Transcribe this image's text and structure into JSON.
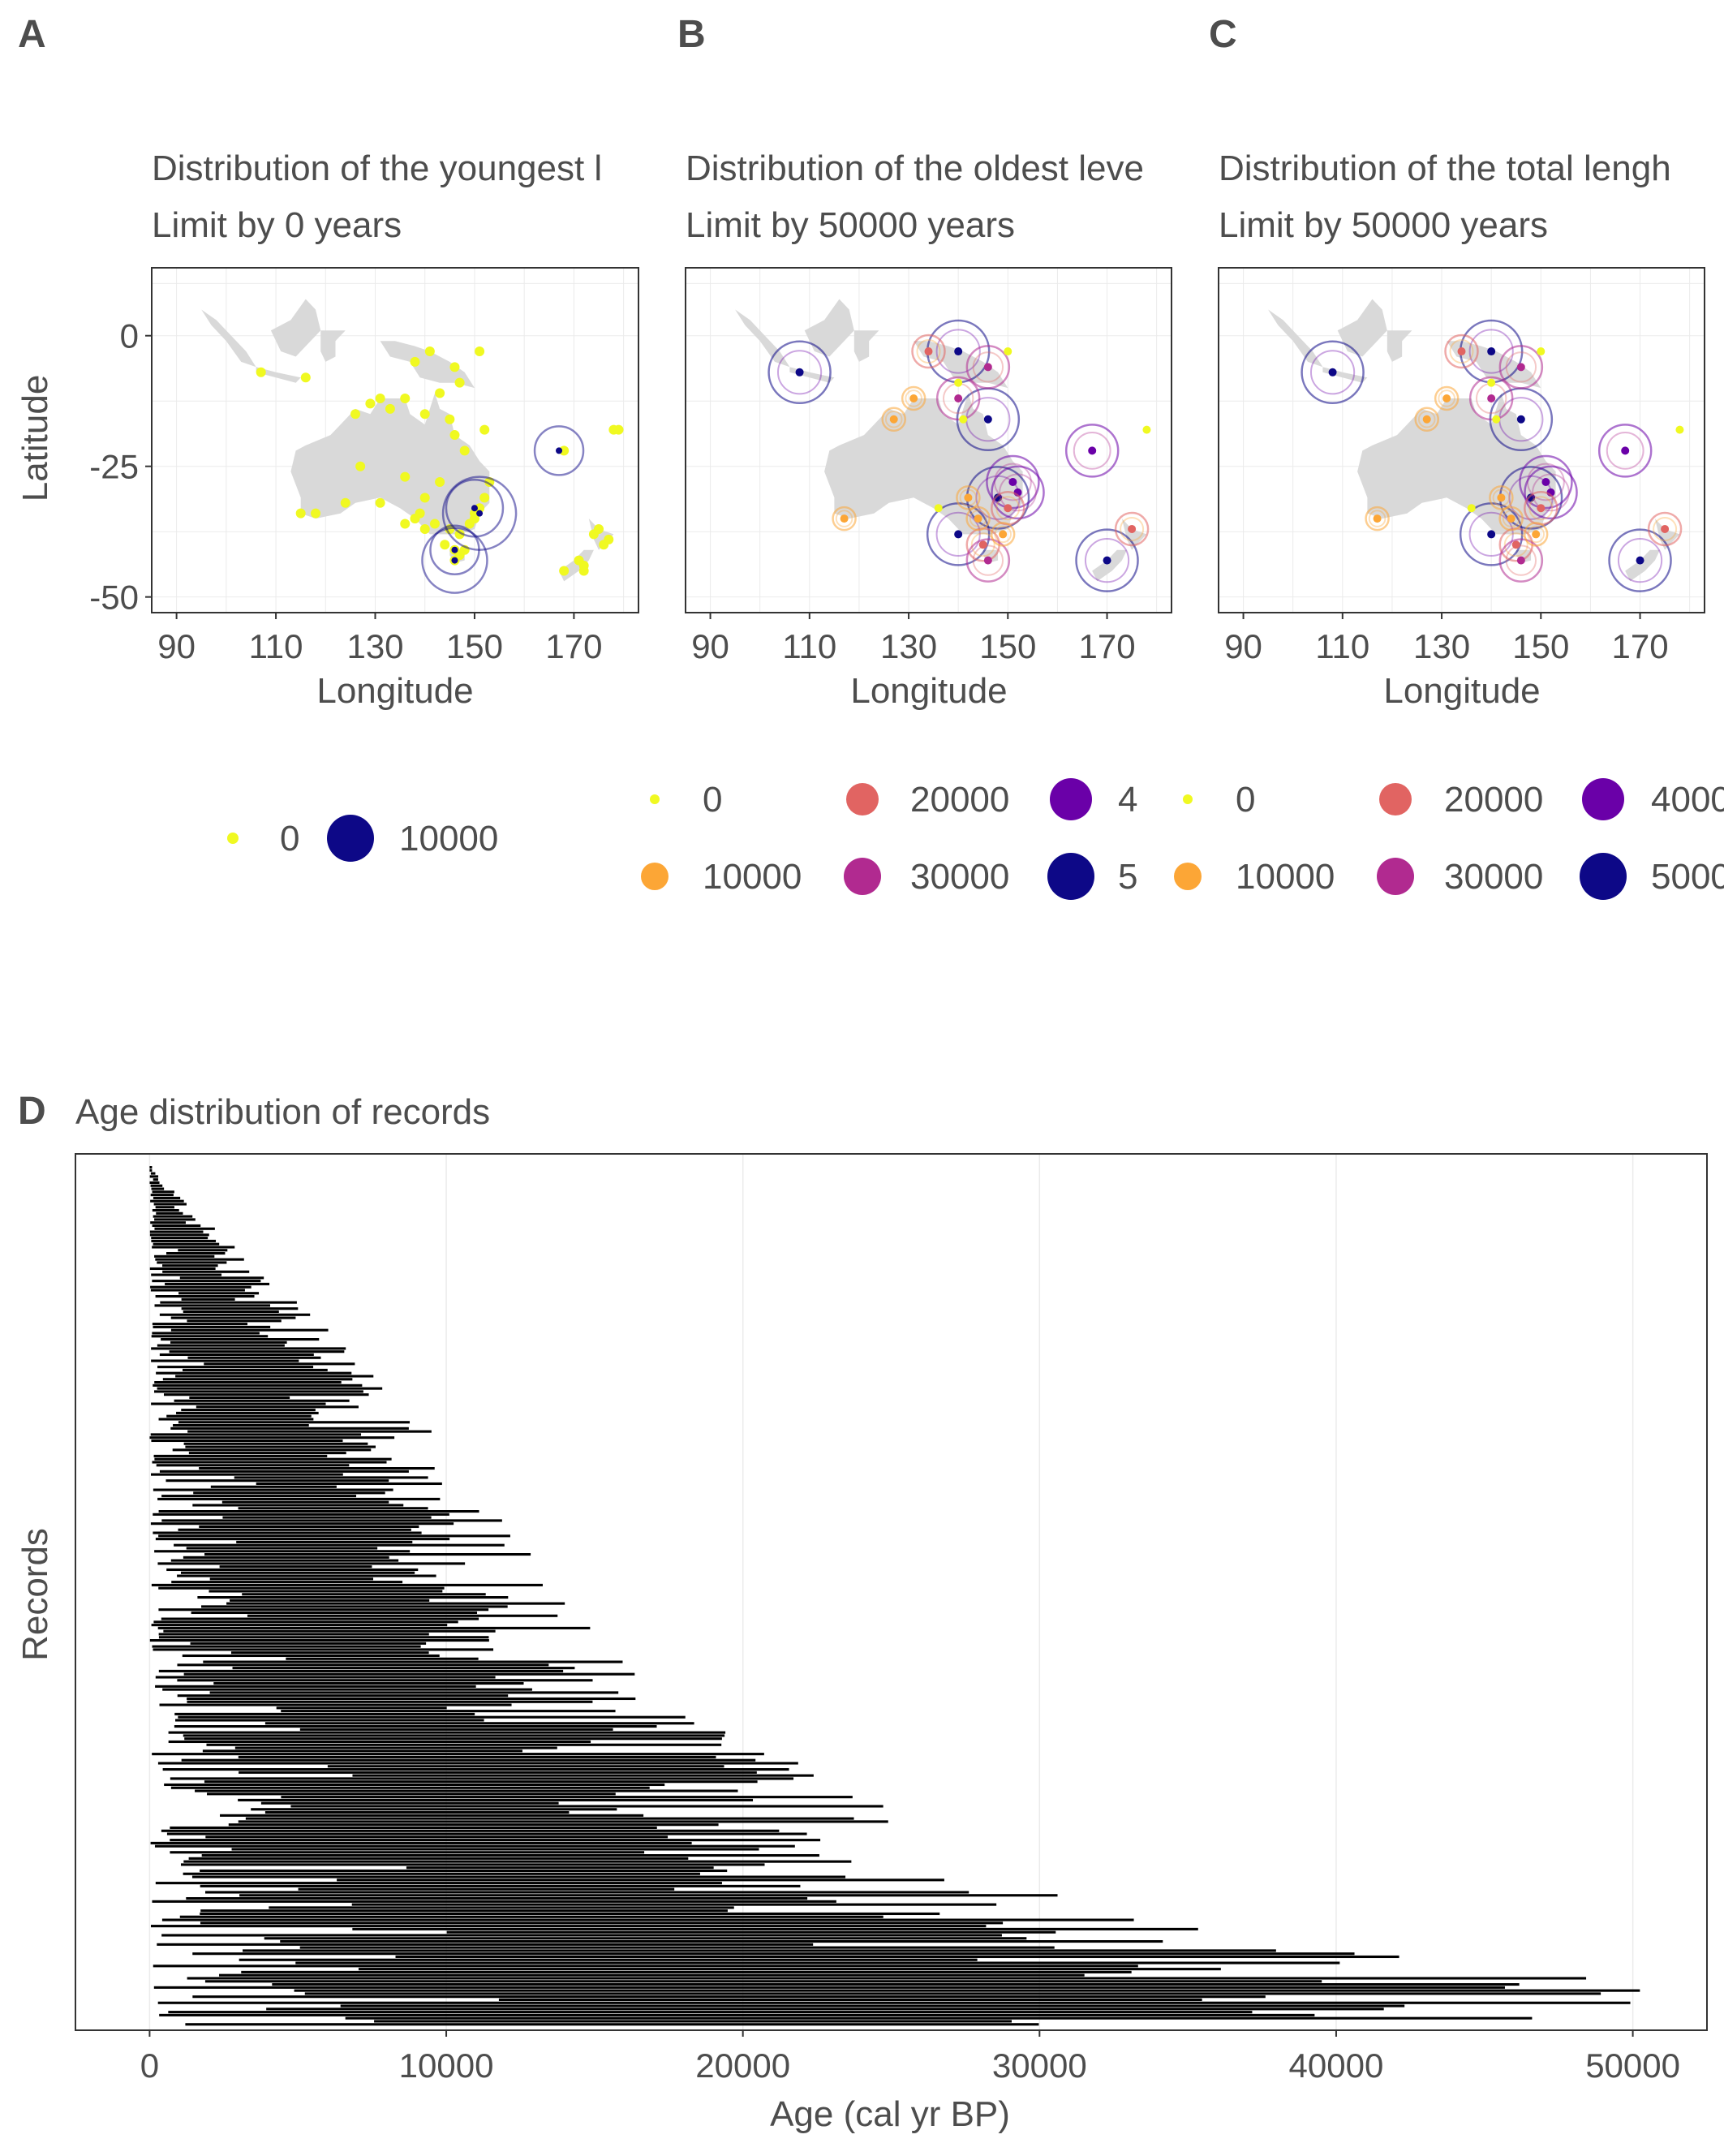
{
  "panels": [
    {
      "tag": "A",
      "title": "Distribution of the youngest l",
      "subtitle": "Limit by 0 years",
      "xlabel": "Longitude",
      "ylabel": "Latitude",
      "xticks": [
        "90",
        "110",
        "130",
        "150",
        "170"
      ],
      "yticks": [
        "0",
        "-25",
        "-50"
      ],
      "legend": [
        {
          "label": "0",
          "color": "#f0f921",
          "size": "small"
        },
        {
          "label": "10000",
          "color": "#0d0887",
          "size": "large"
        }
      ]
    },
    {
      "tag": "B",
      "title": "Distribution of the oldest leve",
      "subtitle": "Limit by 50000 years",
      "xlabel": "Longitude",
      "xticks": [
        "90",
        "110",
        "130",
        "150",
        "170"
      ],
      "legend": [
        {
          "label": "0",
          "color": "#f0f921"
        },
        {
          "label": "10000",
          "color": "#fca636"
        },
        {
          "label": "20000",
          "color": "#e16462"
        },
        {
          "label": "30000",
          "color": "#b12a90"
        },
        {
          "label": "4",
          "color": "#6a00a8"
        },
        {
          "label": "5",
          "color": "#0d0887"
        }
      ]
    },
    {
      "tag": "C",
      "title": "Distribution of the total lengh",
      "subtitle": "Limit by 50000 years",
      "xlabel": "Longitude",
      "xticks": [
        "90",
        "110",
        "130",
        "150",
        "170"
      ],
      "legend": [
        {
          "label": "0",
          "color": "#f0f921"
        },
        {
          "label": "10000",
          "color": "#fca636"
        },
        {
          "label": "20000",
          "color": "#e16462"
        },
        {
          "label": "30000",
          "color": "#b12a90"
        },
        {
          "label": "4000",
          "color": "#6a00a8"
        },
        {
          "label": "5000",
          "color": "#0d0887"
        }
      ]
    }
  ],
  "panel_d": {
    "tag": "D",
    "title": "Age distribution of records",
    "xlabel": "Age (cal yr BP)",
    "ylabel": "Records",
    "xticks": [
      "0",
      "10000",
      "20000",
      "30000",
      "40000",
      "50000"
    ]
  },
  "colors": {
    "land": "#d9d9d9",
    "frame": "#333333",
    "grid": "#ebebeb",
    "bar": "#000000",
    "text": "#4d4d4d"
  },
  "chart_data": [
    {
      "type": "scatter",
      "panel": "A",
      "xlabel": "Longitude",
      "ylabel": "Latitude",
      "xlim": [
        85,
        183
      ],
      "ylim": [
        -53,
        13
      ],
      "points_small": [
        [
          107,
          -7
        ],
        [
          116,
          -8
        ],
        [
          126,
          -15
        ],
        [
          129,
          -13
        ],
        [
          133,
          -14
        ],
        [
          136,
          -12
        ],
        [
          138,
          -5
        ],
        [
          141,
          -3
        ],
        [
          146,
          -6
        ],
        [
          147,
          -9
        ],
        [
          151,
          -3
        ],
        [
          152,
          -18
        ],
        [
          145,
          -16
        ],
        [
          146,
          -19
        ],
        [
          148,
          -22
        ],
        [
          143,
          -28
        ],
        [
          140,
          -31
        ],
        [
          139,
          -34
        ],
        [
          142,
          -36
        ],
        [
          145,
          -37
        ],
        [
          147,
          -38
        ],
        [
          148,
          -41
        ],
        [
          146,
          -43
        ],
        [
          150,
          -34
        ],
        [
          151,
          -33
        ],
        [
          152,
          -31
        ],
        [
          153,
          -28
        ],
        [
          118,
          -34
        ],
        [
          115,
          -34
        ],
        [
          124,
          -32
        ],
        [
          127,
          -25
        ],
        [
          131,
          -32
        ],
        [
          136,
          -36
        ],
        [
          138,
          -35
        ],
        [
          140,
          -37
        ],
        [
          168,
          -22
        ],
        [
          171,
          -43
        ],
        [
          172,
          -44
        ],
        [
          174,
          -38
        ],
        [
          175,
          -37
        ],
        [
          176,
          -40
        ],
        [
          177,
          -39
        ],
        [
          179,
          -18
        ],
        [
          178,
          -18
        ],
        [
          172,
          -45
        ],
        [
          168,
          -45
        ],
        [
          144,
          -40
        ],
        [
          146,
          -41
        ],
        [
          147,
          -42
        ],
        [
          149,
          -36
        ],
        [
          131,
          -12
        ],
        [
          140,
          -15
        ],
        [
          143,
          -11
        ],
        [
          150,
          -35
        ],
        [
          136,
          -27
        ]
      ],
      "points_large": [
        [
          167,
          -22,
          30
        ],
        [
          150,
          -33,
          35
        ],
        [
          151,
          -34,
          45
        ],
        [
          146,
          -43,
          40
        ],
        [
          146,
          -41,
          30
        ]
      ]
    },
    {
      "type": "scatter",
      "panel": "B",
      "xlabel": "Longitude",
      "xlim": [
        85,
        183
      ],
      "ylim": [
        -53,
        13
      ],
      "points": [
        [
          108,
          -7,
          5
        ],
        [
          140,
          -3,
          5
        ],
        [
          146,
          -16,
          5
        ],
        [
          148,
          -31,
          5
        ],
        [
          140,
          -38,
          5
        ],
        [
          167,
          -22,
          4
        ],
        [
          151,
          -28,
          4
        ],
        [
          170,
          -43,
          5
        ],
        [
          146,
          -6,
          3
        ],
        [
          140,
          -12,
          3
        ],
        [
          134,
          -3,
          2
        ],
        [
          127,
          -16,
          1
        ],
        [
          117,
          -35,
          1
        ],
        [
          152,
          -30,
          4
        ],
        [
          150,
          -33,
          2
        ],
        [
          145,
          -40,
          2
        ],
        [
          146,
          -43,
          3
        ],
        [
          175,
          -37,
          2
        ],
        [
          144,
          -35,
          1
        ],
        [
          136,
          -33,
          0
        ],
        [
          142,
          -31,
          1
        ],
        [
          150,
          -3,
          0
        ],
        [
          178,
          -18,
          0
        ],
        [
          131,
          -12,
          1
        ],
        [
          141,
          -16,
          0
        ],
        [
          149,
          -38,
          1
        ],
        [
          140,
          -9,
          0
        ]
      ]
    },
    {
      "type": "scatter",
      "panel": "C",
      "xlabel": "Longitude",
      "xlim": [
        85,
        183
      ],
      "ylim": [
        -53,
        13
      ],
      "points": [
        [
          108,
          -7,
          5
        ],
        [
          140,
          -3,
          5
        ],
        [
          146,
          -16,
          5
        ],
        [
          148,
          -31,
          5
        ],
        [
          140,
          -38,
          5
        ],
        [
          167,
          -22,
          4
        ],
        [
          151,
          -28,
          4
        ],
        [
          170,
          -43,
          5
        ],
        [
          146,
          -6,
          3
        ],
        [
          140,
          -12,
          3
        ],
        [
          134,
          -3,
          2
        ],
        [
          127,
          -16,
          1
        ],
        [
          117,
          -35,
          1
        ],
        [
          152,
          -30,
          4
        ],
        [
          150,
          -33,
          2
        ],
        [
          145,
          -40,
          2
        ],
        [
          146,
          -43,
          3
        ],
        [
          175,
          -37,
          2
        ],
        [
          144,
          -35,
          1
        ],
        [
          136,
          -33,
          0
        ],
        [
          142,
          -31,
          1
        ],
        [
          150,
          -3,
          0
        ],
        [
          178,
          -18,
          0
        ],
        [
          131,
          -12,
          1
        ],
        [
          141,
          -16,
          0
        ],
        [
          149,
          -38,
          1
        ],
        [
          140,
          -9,
          0
        ]
      ]
    },
    {
      "type": "bar",
      "panel": "D",
      "orientation": "horizontal-range",
      "xlabel": "Age (cal yr BP)",
      "ylabel": "Records",
      "xlim": [
        -2500,
        52500
      ],
      "n_records": 280,
      "max_age_envelope": [
        [
          0,
          0
        ],
        [
          0.05,
          1500
        ],
        [
          0.15,
          5000
        ],
        [
          0.3,
          9500
        ],
        [
          0.5,
          14000
        ],
        [
          0.62,
          17500
        ],
        [
          0.72,
          23500
        ],
        [
          0.82,
          30000
        ],
        [
          0.88,
          35000
        ],
        [
          0.93,
          45000
        ],
        [
          0.96,
          52500
        ],
        [
          1,
          52500
        ]
      ]
    }
  ]
}
